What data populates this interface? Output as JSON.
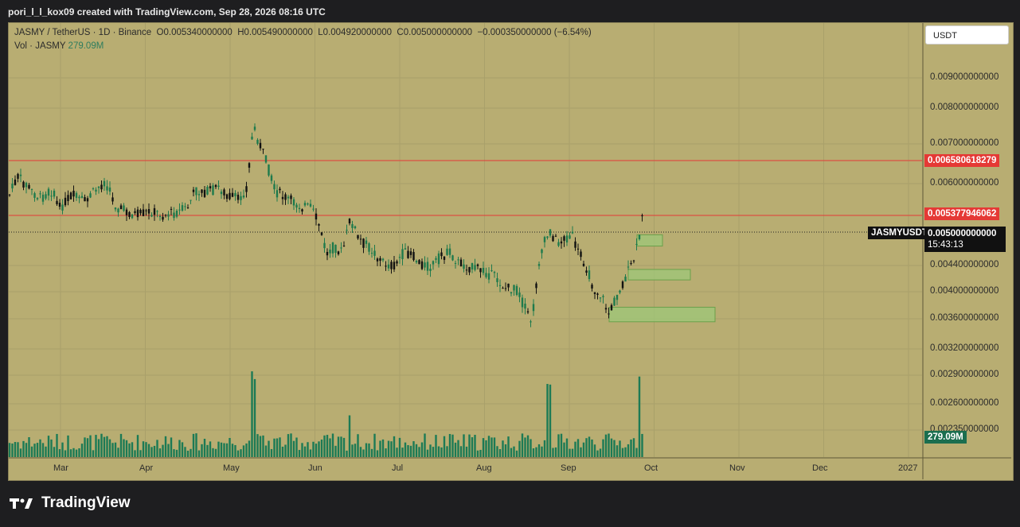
{
  "header": {
    "text": "pori_l_l_kox09 created with TradingView.com, Sep 28, 2026 08:16 UTC"
  },
  "legend": {
    "symbol": "JASMY / TetherUS · 1D · Binance",
    "open": "O0.005340000000",
    "high": "H0.005490000000",
    "low": "L0.004920000000",
    "close": "C0.005000000000",
    "change": "−0.000350000000 (−6.54%)",
    "vol_label": "Vol · JASMY",
    "vol_value": "279.09M"
  },
  "currency": "USDT",
  "chart_data": {
    "type": "candlestick",
    "y_ticks": [
      "0.009000000000",
      "0.008000000000",
      "0.007000000000",
      "0.006000000000",
      "0.004400000000",
      "0.004000000000",
      "0.003600000000",
      "0.003200000000",
      "0.002900000000",
      "0.002600000000",
      "0.002350000000"
    ],
    "x_ticks": [
      "Mar",
      "Apr",
      "May",
      "Jun",
      "Jul",
      "Aug",
      "Sep",
      "Oct",
      "Nov",
      "Dec",
      "2027"
    ],
    "hlines": [
      {
        "label": "0.006580618279",
        "value": 0.006580618279,
        "color": "#e53935"
      },
      {
        "label": "0.005377946062",
        "value": 0.005377946062,
        "color": "#e53935"
      }
    ],
    "last_price": {
      "symbol": "JASMYUSDT",
      "value": "0.005000000000",
      "countdown": "15:43:13"
    },
    "volume_badge": "279.09M",
    "zones": [
      {
        "from": 0.005,
        "to": 0.00478
      },
      {
        "from": 0.00434,
        "to": 0.00418
      },
      {
        "from": 0.00377,
        "to": 0.00356
      }
    ]
  },
  "footer": {
    "logo": "TradingView"
  }
}
